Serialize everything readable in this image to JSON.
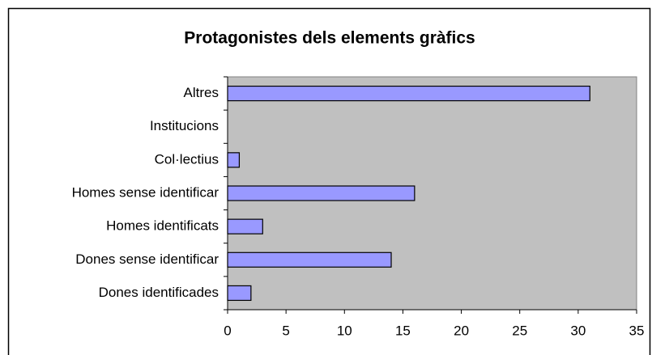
{
  "chart_data": {
    "type": "barh",
    "title": "Protagonistes dels elements gràfics",
    "categories": [
      "Altres",
      "Institucions",
      "Col·lectius",
      "Homes sense identificar",
      "Homes identificats",
      "Dones sense identificar",
      "Dones identificades"
    ],
    "values": [
      31,
      0,
      1,
      16,
      3,
      14,
      2
    ],
    "color": "#9999ff",
    "xlim": [
      0,
      35
    ],
    "xticks": [
      0,
      5,
      10,
      15,
      20,
      25,
      30,
      35
    ],
    "grid": false
  }
}
